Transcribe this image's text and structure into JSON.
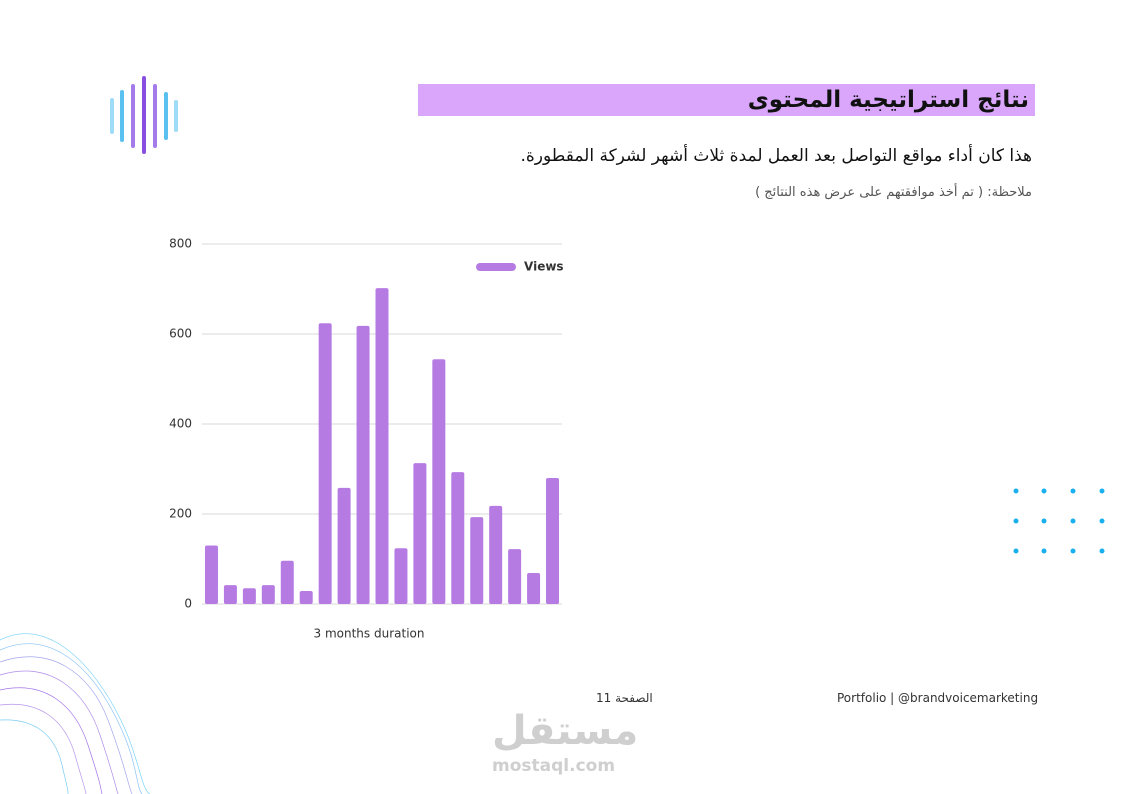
{
  "header": {
    "title": "نتائج استراتيجية المحتوى",
    "subtitle": "هذا كان أداء مواقع التواصل بعد العمل لمدة ثلاث أشهر لشركة المقطورة.",
    "note": "ملاحظة: ( تم أخذ موافقتهم على عرض هذه النتائج )"
  },
  "chart_data": {
    "type": "bar",
    "x_label": "3 months duration",
    "categories": [
      null,
      null,
      null,
      null,
      null,
      null,
      null,
      null,
      null,
      null,
      null,
      null,
      null,
      null,
      null,
      null,
      null,
      null,
      null
    ],
    "series": [
      {
        "name": "Views",
        "color": "#b57be3",
        "values": [
          130,
          42,
          35,
          42,
          96,
          29,
          624,
          258,
          618,
          702,
          124,
          313,
          544,
          293,
          193,
          218,
          122,
          69,
          280
        ]
      }
    ],
    "ylim": [
      0,
      800
    ],
    "yticks": [
      0,
      200,
      400,
      600,
      800
    ],
    "grid": true,
    "legend": "upper right"
  },
  "footer": {
    "credit": "Portfolio | @brandvoicemarketing",
    "page": "الصفحة 11"
  },
  "watermark": {
    "logo": "مستقل",
    "url": "mostaql.com"
  }
}
